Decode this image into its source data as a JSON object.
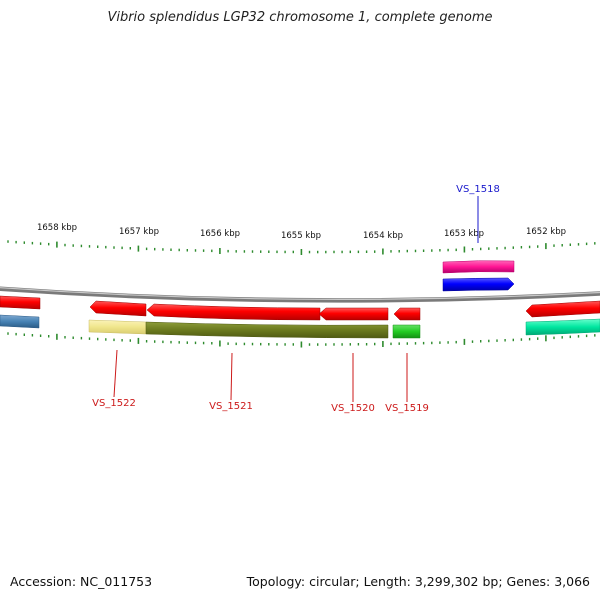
{
  "title": "Vibrio splendidus LGP32 chromosome 1, complete genome",
  "footer": {
    "accession": "Accession: NC_011753",
    "summary": "Topology: circular; Length: 3,299,302 bp; Genes: 3,066"
  },
  "colors": {
    "backbone": "#8a8a8a",
    "tick": "#2e8b2e",
    "gene_label_forward": "#1a1acc",
    "gene_label_reverse": "#cc1a1a"
  },
  "ruler": [
    {
      "label": "1658 kbp",
      "kbp": 1658
    },
    {
      "label": "1657 kbp",
      "kbp": 1657
    },
    {
      "label": "1656 kbp",
      "kbp": 1656
    },
    {
      "label": "1655 kbp",
      "kbp": 1655
    },
    {
      "label": "1654 kbp",
      "kbp": 1654
    },
    {
      "label": "1653 kbp",
      "kbp": 1653
    },
    {
      "label": "1652 kbp",
      "kbp": 1652
    }
  ],
  "gene_labels": [
    {
      "label": "VS_1518",
      "strand": "forward"
    },
    {
      "label": "VS_1519",
      "strand": "reverse"
    },
    {
      "label": "VS_1520",
      "strand": "reverse"
    },
    {
      "label": "VS_1521",
      "strand": "reverse"
    },
    {
      "label": "VS_1522",
      "strand": "reverse"
    }
  ]
}
